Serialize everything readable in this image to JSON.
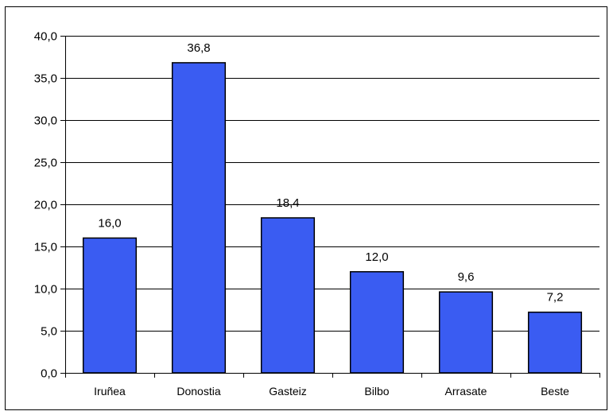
{
  "chart_data": {
    "type": "bar",
    "categories": [
      "Iruñea",
      "Donostia",
      "Gasteiz",
      "Bilbo",
      "Arrasate",
      "Beste"
    ],
    "values": [
      16.0,
      36.8,
      18.4,
      12.0,
      9.6,
      7.2
    ],
    "value_labels": [
      "16,0",
      "36,8",
      "18,4",
      "12,0",
      "9,6",
      "7,2"
    ],
    "y_ticks": [
      0,
      5,
      10,
      15,
      20,
      25,
      30,
      35,
      40
    ],
    "y_tick_labels": [
      "0,0",
      "5,0",
      "10,0",
      "15,0",
      "20,0",
      "25,0",
      "30,0",
      "35,0",
      "40,0"
    ],
    "ylim": [
      0,
      40
    ],
    "grid": true,
    "bar_color": "#3a5cf2",
    "title": "",
    "xlabel": "",
    "ylabel": ""
  }
}
